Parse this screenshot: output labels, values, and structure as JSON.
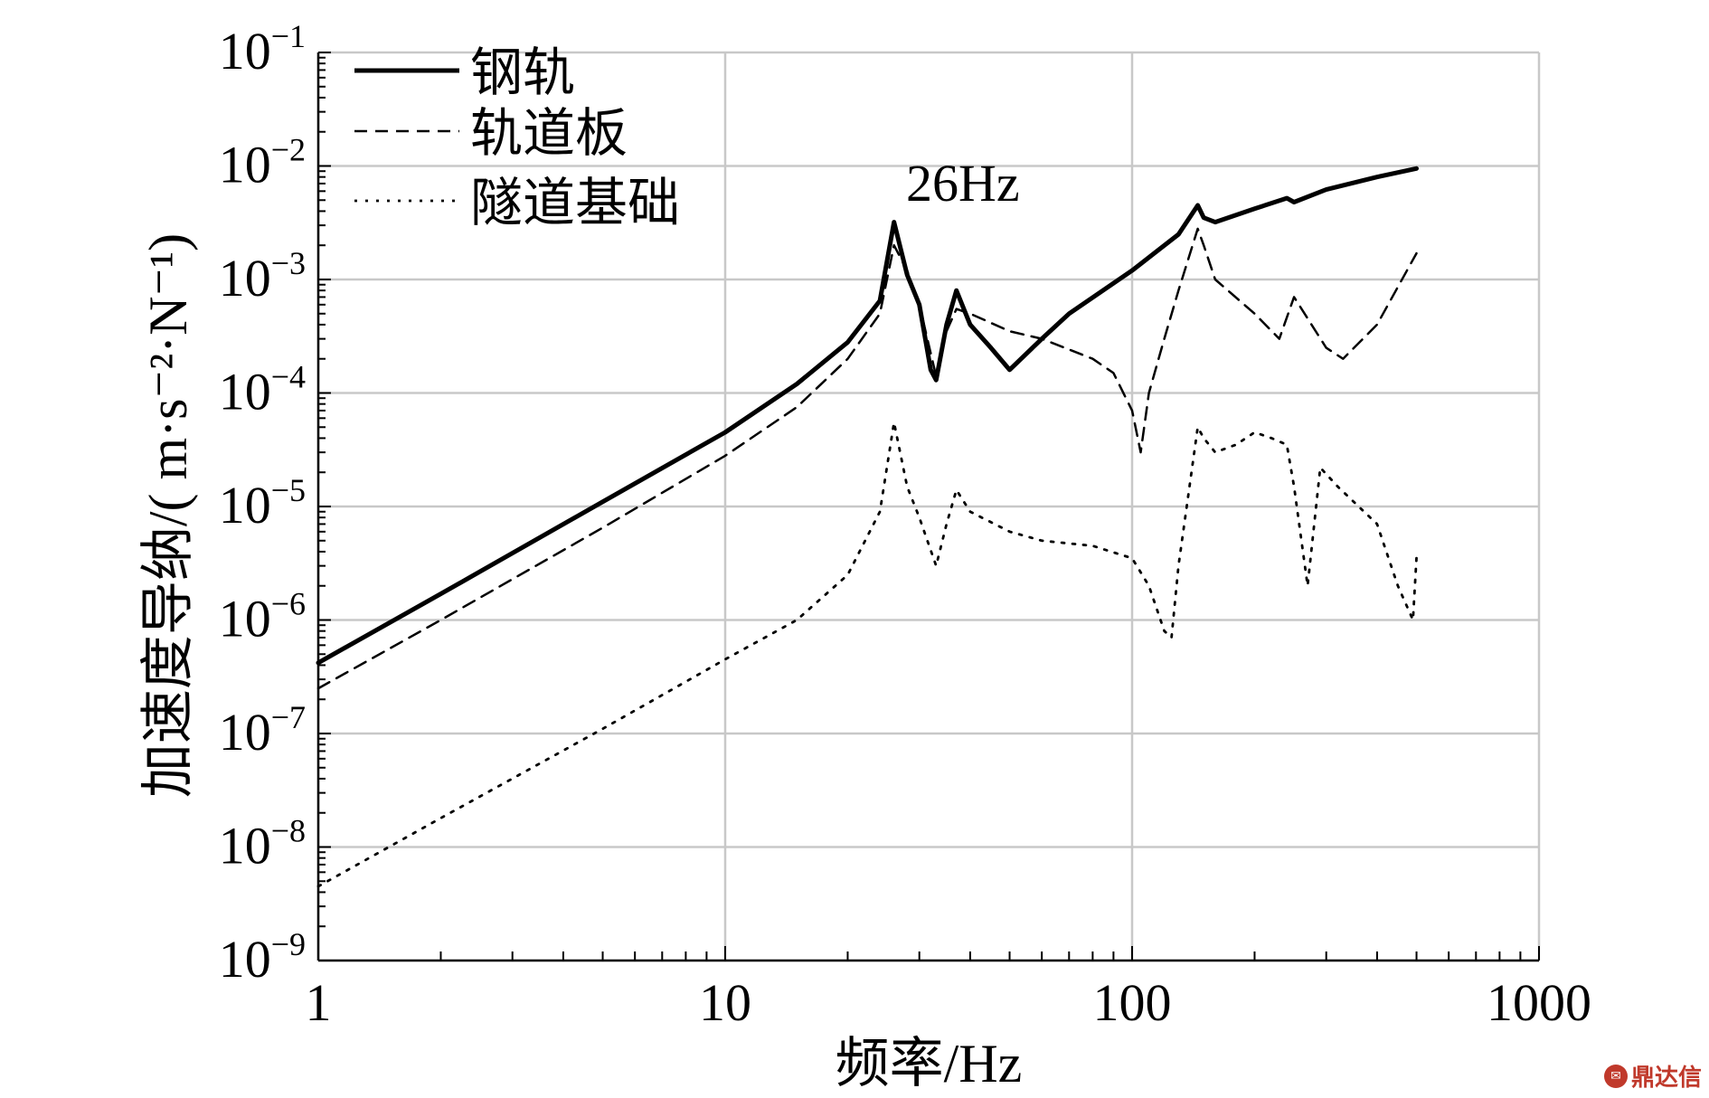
{
  "chart_data": {
    "type": "line",
    "xlabel": "频率/Hz",
    "ylabel": "加速度导纳/( m·s⁻²·N⁻¹)",
    "xscale": "log",
    "yscale": "log",
    "xlim": [
      1,
      1000
    ],
    "ylim": [
      1e-09,
      0.1
    ],
    "x_ticks": [
      {
        "value": 1,
        "label": "1"
      },
      {
        "value": 10,
        "label": "10"
      },
      {
        "value": 100,
        "label": "100"
      },
      {
        "value": 1000,
        "label": "1000"
      }
    ],
    "y_ticks": [
      {
        "value": 1e-09,
        "base": "10",
        "exp": "−9"
      },
      {
        "value": 1e-08,
        "base": "10",
        "exp": "−8"
      },
      {
        "value": 1e-07,
        "base": "10",
        "exp": "−7"
      },
      {
        "value": 1e-06,
        "base": "10",
        "exp": "−6"
      },
      {
        "value": 1e-05,
        "base": "10",
        "exp": "−5"
      },
      {
        "value": 0.0001,
        "base": "10",
        "exp": "−4"
      },
      {
        "value": 0.001,
        "base": "10",
        "exp": "−3"
      },
      {
        "value": 0.01,
        "base": "10",
        "exp": "−2"
      },
      {
        "value": 0.1,
        "base": "10",
        "exp": "−1"
      }
    ],
    "grid": true,
    "legend_position": "top-left",
    "annotation": {
      "text": "26Hz",
      "x": 26,
      "y": 0.011
    },
    "series": [
      {
        "name": "钢轨",
        "style": "solid",
        "x": [
          1,
          2,
          5,
          10,
          15,
          20,
          24,
          26,
          28,
          30,
          32,
          33,
          35,
          37,
          40,
          45,
          50,
          60,
          70,
          100,
          130,
          145,
          150,
          160,
          200,
          240,
          250,
          300,
          400,
          500
        ],
        "y": [
          4.2e-07,
          1.7e-06,
          1.1e-05,
          4.5e-05,
          0.00012,
          0.00028,
          0.00065,
          0.0032,
          0.0011,
          0.0006,
          0.00016,
          0.00013,
          0.0004,
          0.0008,
          0.0004,
          0.00025,
          0.00016,
          0.0003,
          0.0005,
          0.0012,
          0.0025,
          0.0045,
          0.0035,
          0.0032,
          0.0042,
          0.0052,
          0.0048,
          0.0062,
          0.008,
          0.0095
        ]
      },
      {
        "name": "轨道板",
        "style": "dashed",
        "x": [
          1,
          2,
          5,
          10,
          15,
          20,
          24,
          26,
          28,
          30,
          33,
          35,
          37,
          40,
          50,
          60,
          80,
          90,
          100,
          105,
          110,
          120,
          130,
          145,
          150,
          160,
          200,
          230,
          250,
          300,
          330,
          400,
          500
        ],
        "y": [
          2.5e-07,
          1e-06,
          6.5e-06,
          2.8e-05,
          7.5e-05,
          0.0002,
          0.0005,
          0.002,
          0.0012,
          0.0006,
          0.00014,
          0.00035,
          0.00055,
          0.0005,
          0.00035,
          0.0003,
          0.0002,
          0.00015,
          7e-05,
          3e-05,
          0.0001,
          0.0003,
          0.0008,
          0.0028,
          0.002,
          0.001,
          0.0005,
          0.0003,
          0.0007,
          0.00025,
          0.0002,
          0.0004,
          0.0017
        ]
      },
      {
        "name": "隧道基础",
        "style": "dotted",
        "x": [
          1,
          2,
          5,
          10,
          15,
          20,
          24,
          26,
          28,
          30,
          33,
          35,
          37,
          40,
          50,
          60,
          80,
          100,
          110,
          120,
          125,
          130,
          145,
          150,
          160,
          180,
          200,
          220,
          240,
          250,
          270,
          290,
          320,
          400,
          450,
          490,
          500
        ],
        "y": [
          4.5e-09,
          1.8e-08,
          1.1e-07,
          4.5e-07,
          1e-06,
          2.5e-06,
          9e-06,
          5.5e-05,
          1.5e-05,
          8e-06,
          3e-06,
          7e-06,
          1.4e-05,
          9e-06,
          6e-06,
          5e-06,
          4.5e-06,
          3.5e-06,
          2e-06,
          8e-07,
          7e-07,
          3e-06,
          5e-05,
          4e-05,
          3e-05,
          3.5e-05,
          4.5e-05,
          4e-05,
          3.5e-05,
          1.5e-05,
          2e-06,
          2.2e-05,
          1.5e-05,
          7e-06,
          2e-06,
          1e-06,
          3.5e-06
        ]
      }
    ]
  },
  "watermark": "鼎达信"
}
